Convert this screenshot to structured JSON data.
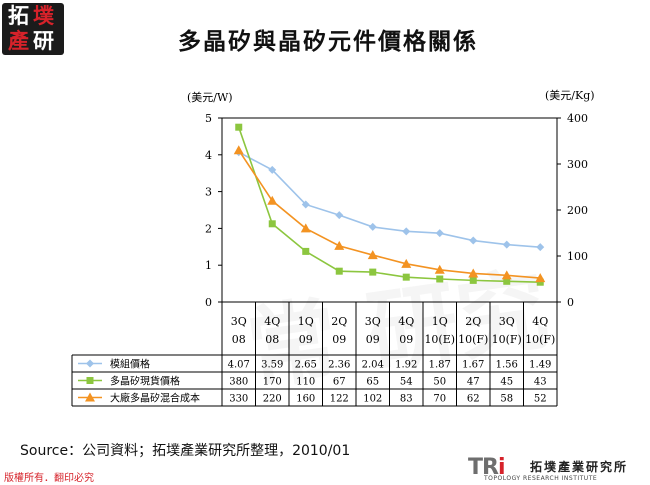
{
  "logo": {
    "chars": [
      "拓",
      "墣",
      "產",
      "研"
    ]
  },
  "title": "多晶矽與晶矽元件價格關係",
  "units": {
    "left": "(美元/W)",
    "right": "(美元/Kg)"
  },
  "source": "Source：公司資料；拓墣產業研究所整理，2010/01",
  "copyright": "版權所有．翻印必究",
  "brand": {
    "mark_tr": "TR",
    "mark_i": "i",
    "name_cn": "拓墣產業研究所",
    "name_en": "TOPOLOGY RESEARCH INSTITUTE"
  },
  "watermark": "常 研究",
  "chart_data": {
    "type": "line",
    "categories": [
      [
        "3Q",
        "08"
      ],
      [
        "4Q",
        "08"
      ],
      [
        "1Q",
        "09"
      ],
      [
        "2Q",
        "09"
      ],
      [
        "3Q",
        "09"
      ],
      [
        "4Q",
        "09"
      ],
      [
        "1Q",
        "10(E)"
      ],
      [
        "2Q",
        "10(F)"
      ],
      [
        "3Q",
        "10(F)"
      ],
      [
        "4Q",
        "10(F)"
      ]
    ],
    "ylim_left": [
      0,
      5
    ],
    "yticks_left": [
      0,
      1,
      2,
      3,
      4,
      5
    ],
    "ylim_right": [
      0,
      400
    ],
    "yticks_right": [
      0,
      100,
      200,
      300,
      400
    ],
    "series": [
      {
        "name": "模組價格",
        "axis": "left",
        "marker": "diamond",
        "color": "#9ec3ea",
        "values": [
          4.07,
          3.59,
          2.65,
          2.36,
          2.04,
          1.92,
          1.87,
          1.67,
          1.56,
          1.49
        ],
        "labels": [
          "4.07",
          "3.59",
          "2.65",
          "2.36",
          "2.04",
          "1.92",
          "1.87",
          "1.67",
          "1.56",
          "1.49"
        ]
      },
      {
        "name": "多晶矽現貨價格",
        "axis": "right",
        "marker": "square",
        "color": "#8cc63f",
        "values": [
          380,
          170,
          110,
          67,
          65,
          54,
          50,
          47,
          45,
          43
        ],
        "labels": [
          "380",
          "170",
          "110",
          "67",
          "65",
          "54",
          "50",
          "47",
          "45",
          "43"
        ]
      },
      {
        "name": "大廠多晶矽混合成本",
        "axis": "right",
        "marker": "triangle",
        "color": "#f39322",
        "values": [
          330,
          220,
          160,
          122,
          102,
          83,
          70,
          62,
          58,
          52
        ],
        "labels": [
          "330",
          "220",
          "160",
          "122",
          "102",
          "83",
          "70",
          "62",
          "58",
          "52"
        ]
      }
    ],
    "grid": false
  }
}
